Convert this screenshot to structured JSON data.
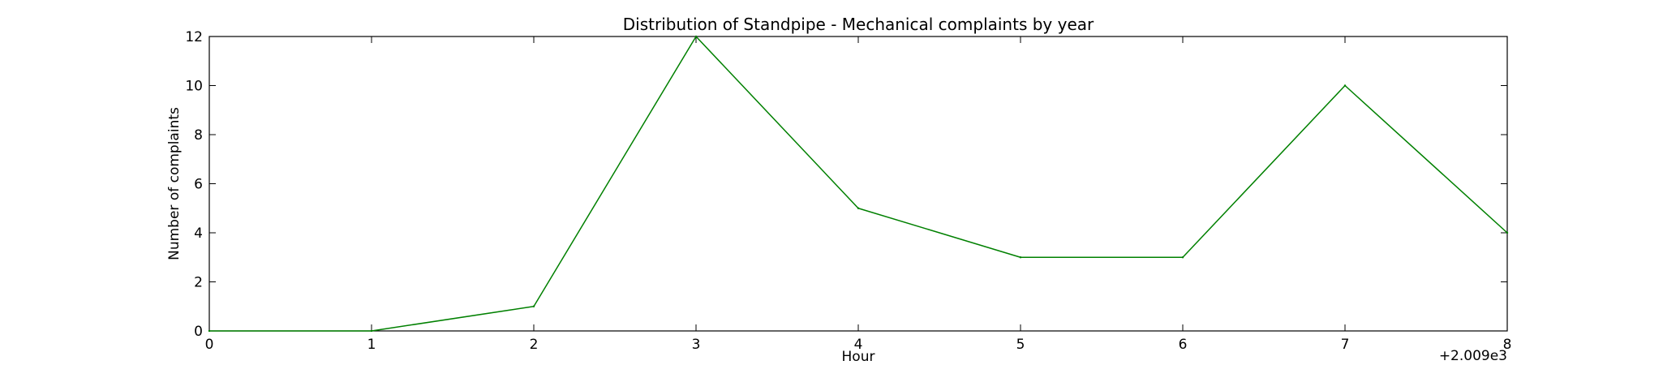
{
  "chart_data": {
    "type": "line",
    "title": "Distribution of  Standpipe - Mechanical complaints by year",
    "xlabel": "Hour",
    "ylabel": "Number of complaints",
    "x_offset_label": "+2.009e3",
    "x": [
      0,
      1,
      2,
      3,
      4,
      5,
      6,
      7,
      8
    ],
    "series": [
      {
        "values": [
          0,
          0,
          1,
          12,
          5,
          3,
          3,
          10,
          4
        ],
        "color": "#008000"
      }
    ],
    "xlim": [
      0,
      8
    ],
    "ylim": [
      0,
      12
    ],
    "xticks": [
      0,
      1,
      2,
      3,
      4,
      5,
      6,
      7,
      8
    ],
    "yticks": [
      0,
      2,
      4,
      6,
      8,
      10,
      12
    ],
    "grid": false,
    "legend": "none"
  }
}
